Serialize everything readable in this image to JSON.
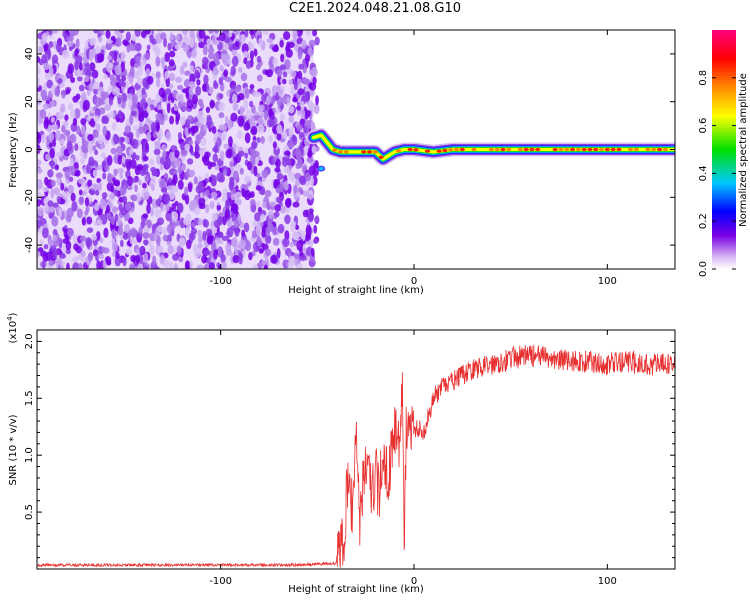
{
  "title": "C2E1.2024.048.21.08.G10",
  "chart_data": [
    {
      "type": "heatmap",
      "xlabel": "Height of straight line (km)",
      "ylabel": "Frequency (Hz)",
      "xlim": [
        -195,
        135
      ],
      "ylim": [
        -50,
        50
      ],
      "xticks": [
        -100,
        0,
        100
      ],
      "xtick_labels": [
        "-100",
        "0",
        "100"
      ],
      "yticks": [
        -40,
        -20,
        0,
        20,
        40
      ],
      "ytick_labels": [
        "-40",
        "-20",
        "0",
        "20",
        "40"
      ],
      "noise_region_x": [
        -195,
        -52
      ],
      "signal_track": {
        "x": [
          -52,
          -48,
          -45,
          -42,
          -38,
          -35,
          -30,
          -25,
          -20,
          -16,
          -14,
          -10,
          -5,
          0,
          10,
          20,
          40,
          60,
          80,
          100,
          120,
          135
        ],
        "frequency": [
          5,
          6,
          3,
          0,
          -1,
          -1,
          -1,
          -1,
          -1,
          -4,
          -3,
          -1,
          0,
          0,
          -1,
          0,
          0,
          0,
          0,
          0,
          0,
          0
        ]
      },
      "colorbar": {
        "label": "Normalized spectral amplitude",
        "range": [
          0,
          1
        ],
        "ticks": [
          0.0,
          0.2,
          0.4,
          0.6,
          0.8
        ],
        "tick_labels": [
          "0.0",
          "0.2",
          "0.4",
          "0.6",
          "0.8"
        ],
        "colors": [
          "#ffffff",
          "#c89af0",
          "#7a00e6",
          "#0000ff",
          "#00c8ff",
          "#00e000",
          "#ffff00",
          "#ff8000",
          "#ff0000",
          "#ff0080"
        ]
      }
    },
    {
      "type": "line",
      "xlabel": "Height of straight line (km)",
      "ylabel": "SNR (10 * v/v)",
      "y_scale_note": "(x10",
      "y_scale_exponent": "4",
      "xlim": [
        -195,
        135
      ],
      "ylim": [
        0,
        21000
      ],
      "xticks": [
        -100,
        0,
        100
      ],
      "xtick_labels": [
        "-100",
        "0",
        "100"
      ],
      "yticks": [
        5000,
        10000,
        15000,
        20000
      ],
      "ytick_labels": [
        "0.5",
        "1.0",
        "1.5",
        "2.0"
      ],
      "color": "#e83030",
      "series": [
        {
          "x": [
            -195,
            -150,
            -100,
            -60,
            -40,
            -36,
            -34,
            -32,
            -30,
            -28,
            -26,
            -24,
            -22,
            -20,
            -18,
            -16,
            -14,
            -12,
            -10,
            -8,
            -6,
            -5,
            -4,
            -2,
            0,
            5,
            10,
            15,
            20,
            30,
            40,
            50,
            60,
            70,
            80,
            90,
            100,
            110,
            120,
            135
          ],
          "y": [
            350,
            350,
            350,
            350,
            500,
            2500,
            9000,
            5000,
            12500,
            4000,
            8000,
            10500,
            5500,
            9000,
            6000,
            11000,
            8000,
            9500,
            13000,
            10500,
            17500,
            1000,
            13000,
            12000,
            12500,
            12000,
            15000,
            16000,
            16500,
            17500,
            18000,
            18500,
            18800,
            18500,
            18300,
            18200,
            18000,
            18200,
            18000,
            18000
          ]
        }
      ]
    }
  ]
}
